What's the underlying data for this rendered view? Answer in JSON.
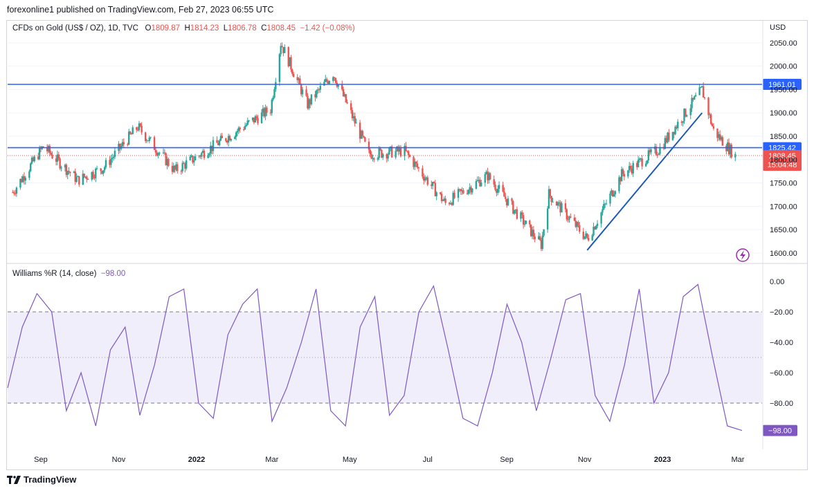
{
  "header": {
    "publish_line": "forexonline1 published on TradingView.com, Feb 27, 2023 06:55 UTC"
  },
  "legend": {
    "symbol": "CFDs on Gold (US$ / OZ), 1D, TVC",
    "o_label": "O",
    "o_val": "1809.87",
    "h_label": "H",
    "h_val": "1814.23",
    "l_label": "L",
    "l_val": "1806.78",
    "c_label": "C",
    "c_val": "1808.45",
    "change": "−1.42 (−0.08%)"
  },
  "currency": "USD",
  "indicator": {
    "name": "Williams %R (14, close)",
    "value": "−98.00"
  },
  "footer": {
    "brand": "TradingView"
  },
  "colors": {
    "up": "#26a69a",
    "down": "#ef5350",
    "level": "#2962ff",
    "trend": "#1e5ab4",
    "indicator": "#7e57c2",
    "band": "#f1eefb"
  },
  "chart_data": [
    {
      "type": "candlestick",
      "title": "CFDs on Gold (US$ / OZ), 1D, TVC",
      "x": [
        "Sep",
        "Nov",
        "2022",
        "Mar",
        "May",
        "Jul",
        "Sep",
        "Nov",
        "2023",
        "Mar"
      ],
      "y_ticks": [
        "2050.00",
        "2000.00",
        "1950.00",
        "1900.00",
        "1850.00",
        "1800.00",
        "1750.00",
        "1700.00",
        "1650.00",
        "1600.00"
      ],
      "ylim": [
        1585,
        2075
      ],
      "horizontal_levels": [
        {
          "value": 1961.01,
          "label": "1961.01"
        },
        {
          "value": 1825.42,
          "label": "1825.42"
        }
      ],
      "last_price": {
        "value": 1808.45,
        "label": "1808.45",
        "countdown": "15:04:48"
      },
      "trendline": [
        {
          "date": "Nov 2022",
          "value": 1606
        },
        {
          "date": "Feb 2023",
          "value": 1900
        }
      ],
      "approx_closes": [
        {
          "date": "2021-08-10",
          "close": 1730
        },
        {
          "date": "2021-09-03",
          "close": 1828
        },
        {
          "date": "2021-09-30",
          "close": 1756
        },
        {
          "date": "2021-10-20",
          "close": 1782
        },
        {
          "date": "2021-11-16",
          "close": 1870
        },
        {
          "date": "2021-12-15",
          "close": 1776
        },
        {
          "date": "2022-01-25",
          "close": 1848
        },
        {
          "date": "2022-02-28",
          "close": 1908
        },
        {
          "date": "2022-03-08",
          "close": 2050
        },
        {
          "date": "2022-03-29",
          "close": 1918
        },
        {
          "date": "2022-04-18",
          "close": 1985
        },
        {
          "date": "2022-05-16",
          "close": 1812
        },
        {
          "date": "2022-06-13",
          "close": 1818
        },
        {
          "date": "2022-07-15",
          "close": 1706
        },
        {
          "date": "2022-08-17",
          "close": 1766
        },
        {
          "date": "2022-09-28",
          "close": 1618
        },
        {
          "date": "2022-10-04",
          "close": 1726
        },
        {
          "date": "2022-11-03",
          "close": 1630
        },
        {
          "date": "2022-11-30",
          "close": 1768
        },
        {
          "date": "2022-12-30",
          "close": 1824
        },
        {
          "date": "2023-02-01",
          "close": 1950
        },
        {
          "date": "2023-02-10",
          "close": 1862
        },
        {
          "date": "2023-02-27",
          "close": 1808
        }
      ]
    },
    {
      "type": "line",
      "title": "Williams %R (14, close)",
      "y_ticks": [
        "0.00",
        "−20.00",
        "−40.00",
        "−60.00",
        "−80.00"
      ],
      "ylim": [
        -100,
        0
      ],
      "band": [
        -80,
        -20
      ],
      "last_value": {
        "value": -98.0,
        "label": "−98.00"
      },
      "values": [
        -70,
        -30,
        -8,
        -20,
        -85,
        -60,
        -95,
        -45,
        -30,
        -88,
        -55,
        -10,
        -5,
        -80,
        -90,
        -35,
        -15,
        -5,
        -92,
        -70,
        -40,
        -5,
        -85,
        -95,
        -30,
        -10,
        -88,
        -75,
        -20,
        -3,
        -45,
        -90,
        -95,
        -60,
        -15,
        -40,
        -85,
        -50,
        -12,
        -8,
        -75,
        -92,
        -55,
        -5,
        -80,
        -60,
        -10,
        -2,
        -50,
        -95,
        -98
      ]
    }
  ]
}
